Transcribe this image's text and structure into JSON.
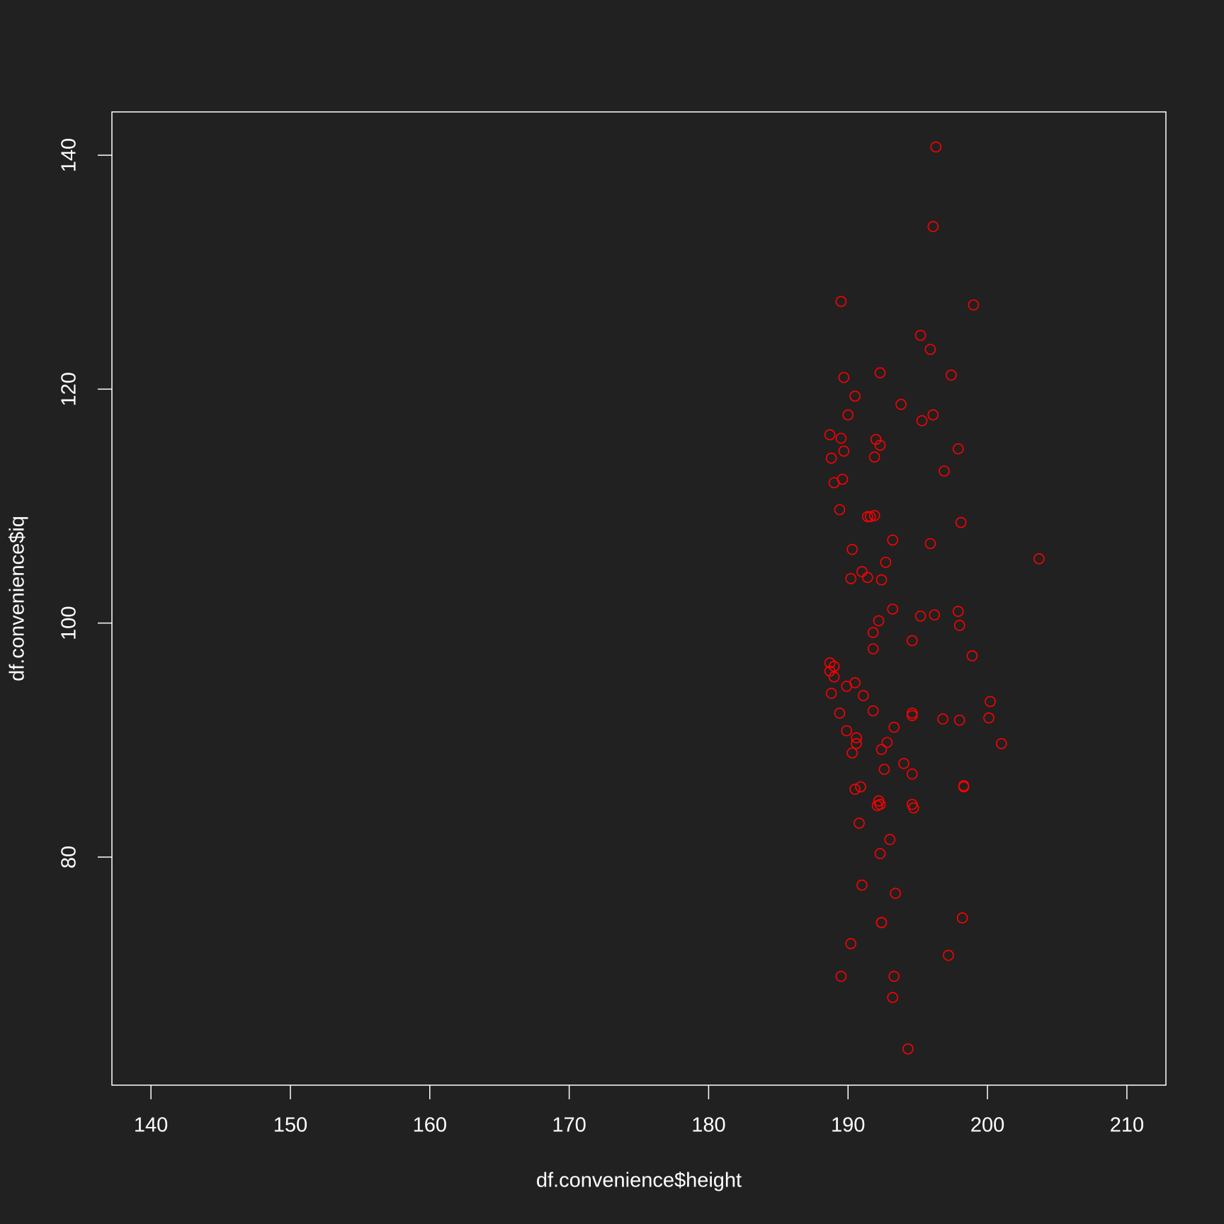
{
  "chart_data": {
    "type": "scatter",
    "x_label": "df.convenience$height",
    "y_label": "df.convenience$iq",
    "color": "#ff0000",
    "background": "#212121",
    "xlim": [
      137.2,
      212.8
    ],
    "ylim": [
      60.5,
      143.7
    ],
    "xticks": [
      140,
      150,
      160,
      170,
      180,
      190,
      200,
      210
    ],
    "yticks": [
      80,
      100,
      120,
      140
    ],
    "x": [
      196.3,
      196.1,
      189.5,
      199.0,
      195.2,
      195.9,
      192.3,
      197.4,
      189.7,
      190.5,
      193.8,
      190.0,
      196.1,
      195.3,
      188.7,
      189.5,
      192.0,
      192.3,
      197.9,
      189.7,
      188.8,
      191.9,
      196.9,
      189.6,
      189.0,
      189.4,
      191.4,
      191.6,
      191.9,
      198.1,
      193.2,
      195.9,
      203.7,
      190.3,
      192.7,
      191.0,
      190.2,
      191.4,
      192.4,
      193.2,
      197.9,
      195.2,
      196.2,
      192.2,
      198.0,
      191.8,
      194.6,
      191.8,
      198.9,
      188.7,
      189.0,
      188.7,
      189.0,
      190.5,
      189.9,
      188.8,
      191.1,
      200.2,
      191.8,
      189.4,
      194.6,
      194.6,
      200.1,
      196.8,
      198.0,
      193.3,
      189.9,
      190.6,
      190.6,
      192.8,
      201.0,
      190.3,
      192.4,
      194.0,
      192.6,
      194.6,
      198.3,
      198.3,
      190.9,
      190.5,
      192.2,
      192.1,
      192.3,
      194.6,
      194.7,
      190.8,
      193.0,
      192.3,
      191.0,
      193.4,
      198.2,
      192.4,
      192.4,
      190.2,
      197.2,
      189.5,
      193.3,
      193.2,
      194.3
    ],
    "values": [
      140.7,
      133.9,
      127.5,
      127.2,
      124.6,
      123.4,
      121.4,
      121.2,
      121.0,
      119.4,
      118.7,
      117.8,
      117.8,
      117.3,
      116.1,
      115.8,
      115.7,
      115.2,
      114.9,
      114.7,
      114.1,
      114.2,
      113.0,
      112.3,
      112.0,
      109.7,
      109.1,
      109.1,
      109.2,
      108.6,
      107.1,
      106.8,
      105.5,
      106.3,
      105.2,
      104.4,
      103.8,
      103.9,
      103.7,
      101.2,
      101.0,
      100.6,
      100.7,
      100.2,
      99.8,
      99.2,
      98.5,
      97.8,
      97.2,
      96.6,
      96.3,
      95.9,
      95.4,
      94.9,
      94.6,
      94.0,
      93.8,
      93.3,
      92.5,
      92.3,
      92.3,
      92.1,
      91.9,
      91.8,
      91.7,
      91.1,
      90.8,
      90.2,
      89.7,
      89.8,
      89.7,
      88.9,
      89.2,
      88.0,
      87.5,
      87.1,
      86.1,
      86.0,
      86.0,
      85.8,
      84.8,
      84.4,
      84.5,
      84.5,
      84.2,
      82.9,
      81.5,
      80.3,
      77.6,
      76.9,
      74.8,
      74.4,
      74.4,
      72.6,
      71.6,
      69.8,
      69.8,
      68.0,
      63.6
    ]
  }
}
